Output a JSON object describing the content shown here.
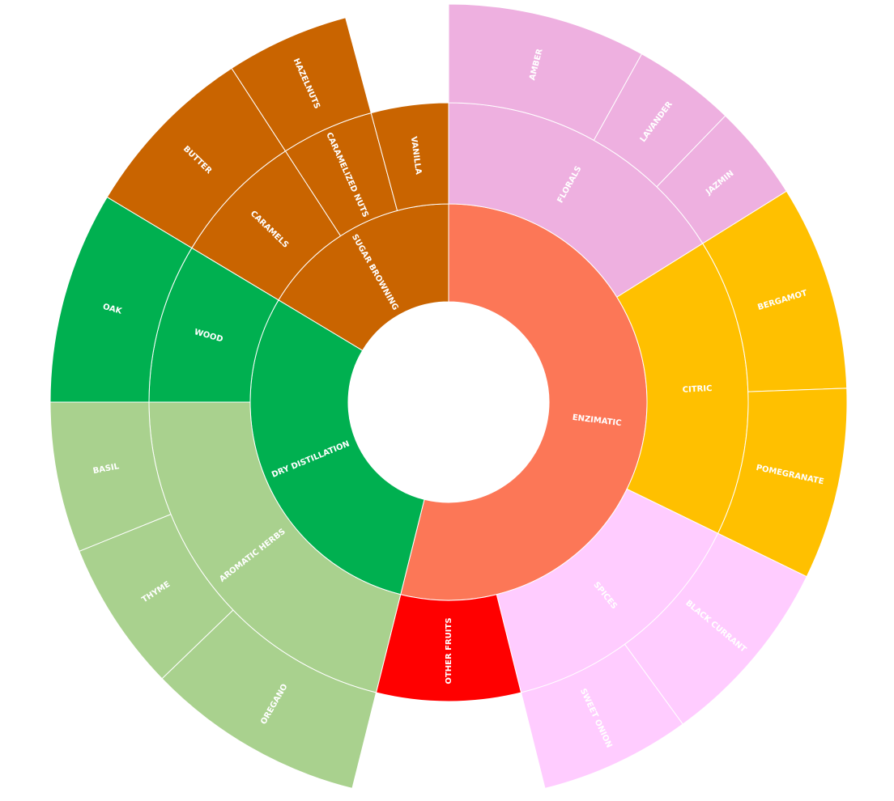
{
  "chart_data": {
    "type": "sunburst",
    "nodes": [
      {
        "name": "ENZIMATIC",
        "value": 194,
        "color": "#FC7757",
        "children": [
          {
            "name": "FLORALS",
            "value": 58,
            "color": "#EEB0E0",
            "children": [
              {
                "name": "AMBER",
                "value": 29
              },
              {
                "name": "LAVANDER",
                "value": 15
              },
              {
                "name": "JAZMIN",
                "value": 14
              }
            ]
          },
          {
            "name": "CITRIC",
            "value": 58,
            "color": "#FFC000",
            "children": [
              {
                "name": "BERGAMOT",
                "value": 30
              },
              {
                "name": "POMEGRANATE",
                "value": 28
              }
            ]
          },
          {
            "name": "SPICES",
            "value": 50,
            "color": "#FFCCFF",
            "children": [
              {
                "name": "BLACK CURRANT",
                "value": 28
              },
              {
                "name": "SWEET ONION",
                "value": 22
              }
            ]
          },
          {
            "name": "OTHER FRUITS",
            "value": 28,
            "color": "#FF0000"
          }
        ]
      },
      {
        "name": "DRY DISTILLATION",
        "value": 107,
        "color": "#00B050",
        "children": [
          {
            "name": "AROMATIC HERBS",
            "value": 76,
            "color": "#A9D18E",
            "children": [
              {
                "name": "OREGANO",
                "value": 32
              },
              {
                "name": "THYME",
                "value": 22
              },
              {
                "name": "BASIL",
                "value": 22
              }
            ]
          },
          {
            "name": "WOOD",
            "value": 31,
            "color": "#00B050",
            "children": [
              {
                "name": "OAK",
                "value": 31
              }
            ]
          }
        ]
      },
      {
        "name": "SUGAR BROWNING",
        "value": 59,
        "color": "#C96400",
        "children": [
          {
            "name": "CARAMELS",
            "value": 26,
            "color": "#C96400",
            "children": [
              {
                "name": "BUTTER",
                "value": 26
              }
            ]
          },
          {
            "name": "CARAMELIZED NUTS",
            "value": 18,
            "color": "#C96400",
            "children": [
              {
                "name": "HAZELNUTS",
                "value": 18
              }
            ]
          },
          {
            "name": "VANILLA",
            "value": 15,
            "color": "#C96400"
          }
        ]
      }
    ]
  }
}
